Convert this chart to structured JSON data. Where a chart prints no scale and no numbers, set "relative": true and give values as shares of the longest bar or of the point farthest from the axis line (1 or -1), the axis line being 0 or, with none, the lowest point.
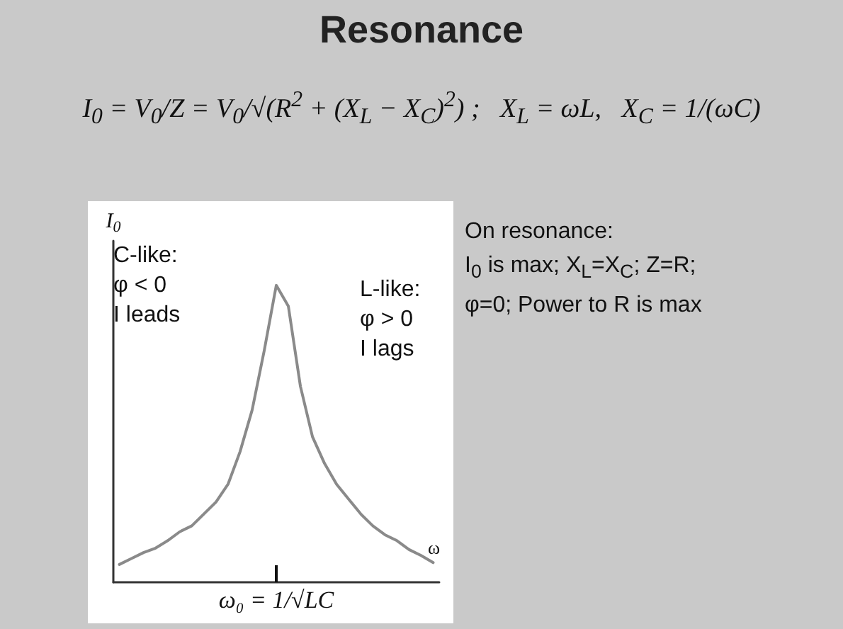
{
  "chart_data": {
    "type": "line",
    "title": "Resonance",
    "subtitle": "I$_{0}$ = V$_{0}$/Z = V$_{0}$/√(R$^{2}$ + (X$_{L}$ − X$_{C}$)$^{2}$) ;   X$_{L}$ = ωL,   X$_{C}$ = 1/(ωC)",
    "xlabel": "ω",
    "ylabel": "I$_{0}$",
    "relative": true,
    "categories": [
      null,
      null,
      null,
      null,
      null,
      null,
      null,
      null,
      null,
      null,
      null,
      null,
      null,
      null,
      null,
      null,
      null,
      null,
      null,
      null,
      null,
      null,
      null,
      null,
      null,
      null,
      null
    ],
    "series": [
      {
        "color": "#8a8a8a",
        "values": [
          0.06,
          0.08,
          0.1,
          0.115,
          0.14,
          0.17,
          0.19,
          0.23,
          0.27,
          0.33,
          0.44,
          0.58,
          0.78,
          1.0,
          0.93,
          0.66,
          0.49,
          0.4,
          0.33,
          0.28,
          0.23,
          0.19,
          0.16,
          0.14,
          0.11,
          0.09,
          0.066
        ]
      }
    ],
    "annotations": [
      "ω₀ = 1/√LC",
      "C-like:\nφ < 0\nI leads",
      "L-like:\nφ > 0\nI lags",
      "On resonance:\nI$_{0}$ is max; X$_{L}$=X$_{C}$; Z=R;\nφ=0; Power to R is max"
    ]
  }
}
